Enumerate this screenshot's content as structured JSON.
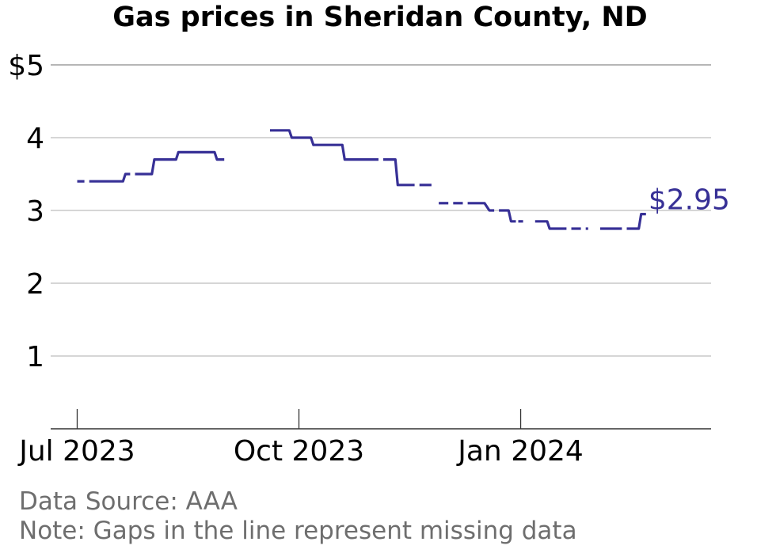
{
  "chart_data": {
    "type": "line",
    "title": "Gas prices in Sheridan County, ND",
    "xlabel": "",
    "ylabel": "",
    "ylim": [
      0,
      5
    ],
    "y_ticks": [
      {
        "value": 1,
        "label": "1"
      },
      {
        "value": 2,
        "label": "2"
      },
      {
        "value": 3,
        "label": "3"
      },
      {
        "value": 4,
        "label": "4"
      },
      {
        "value": 5,
        "label": "$5"
      }
    ],
    "xlim": [
      "2023-06-20",
      "2024-03-20"
    ],
    "x_ticks": [
      {
        "date": "2023-07-01",
        "label": "Jul 2023"
      },
      {
        "date": "2023-10-01",
        "label": "Oct 2023"
      },
      {
        "date": "2024-01-01",
        "label": "Jan 2024"
      }
    ],
    "grid": true,
    "color": "#373096",
    "last_value_label": "$2.95",
    "segments": [
      [
        [
          "2023-07-01",
          3.4
        ],
        [
          "2023-07-04",
          3.4
        ]
      ],
      [
        [
          "2023-07-06",
          3.4
        ],
        [
          "2023-07-20",
          3.4
        ],
        [
          "2023-07-21",
          3.5
        ],
        [
          "2023-07-23",
          3.5
        ]
      ],
      [
        [
          "2023-07-25",
          3.5
        ],
        [
          "2023-08-01",
          3.5
        ],
        [
          "2023-08-02",
          3.7
        ],
        [
          "2023-08-11",
          3.7
        ],
        [
          "2023-08-12",
          3.8
        ],
        [
          "2023-08-27",
          3.8
        ],
        [
          "2023-08-28",
          3.7
        ],
        [
          "2023-08-31",
          3.7
        ]
      ],
      [
        [
          "2023-09-19",
          4.1
        ],
        [
          "2023-09-27",
          4.1
        ],
        [
          "2023-09-28",
          4.0
        ],
        [
          "2023-10-06",
          4.0
        ],
        [
          "2023-10-07",
          3.9
        ],
        [
          "2023-10-19",
          3.9
        ],
        [
          "2023-10-20",
          3.7
        ],
        [
          "2023-11-03",
          3.7
        ]
      ],
      [
        [
          "2023-11-05",
          3.7
        ],
        [
          "2023-11-10",
          3.7
        ],
        [
          "2023-11-11",
          3.35
        ],
        [
          "2023-11-18",
          3.35
        ]
      ],
      [
        [
          "2023-11-20",
          3.35
        ],
        [
          "2023-11-25",
          3.35
        ]
      ],
      [
        [
          "2023-11-28",
          3.1
        ],
        [
          "2023-12-02",
          3.1
        ]
      ],
      [
        [
          "2023-12-04",
          3.1
        ],
        [
          "2023-12-08",
          3.1
        ]
      ],
      [
        [
          "2023-12-10",
          3.1
        ],
        [
          "2023-12-17",
          3.1
        ],
        [
          "2023-12-19",
          3.0
        ],
        [
          "2023-12-21",
          3.0
        ]
      ],
      [
        [
          "2023-12-23",
          3.0
        ],
        [
          "2023-12-27",
          3.0
        ],
        [
          "2023-12-28",
          2.85
        ],
        [
          "2023-12-30",
          2.85
        ]
      ],
      [
        [
          "2023-12-31",
          2.85
        ],
        [
          "2024-01-02",
          2.85
        ]
      ],
      [
        [
          "2024-01-07",
          2.85
        ],
        [
          "2024-01-12",
          2.85
        ],
        [
          "2024-01-13",
          2.75
        ],
        [
          "2024-01-20",
          2.75
        ]
      ],
      [
        [
          "2024-01-22",
          2.75
        ],
        [
          "2024-01-26",
          2.75
        ]
      ],
      [
        [
          "2024-01-28",
          2.75
        ],
        [
          "2024-01-29",
          2.75
        ]
      ],
      [
        [
          "2024-02-03",
          2.75
        ],
        [
          "2024-02-12",
          2.75
        ]
      ],
      [
        [
          "2024-02-14",
          2.75
        ],
        [
          "2024-02-19",
          2.75
        ],
        [
          "2024-02-20",
          2.95
        ],
        [
          "2024-02-22",
          2.95
        ]
      ]
    ]
  },
  "footer": {
    "source": "Data Source: AAA",
    "note": "Note: Gaps in the line represent missing data"
  }
}
